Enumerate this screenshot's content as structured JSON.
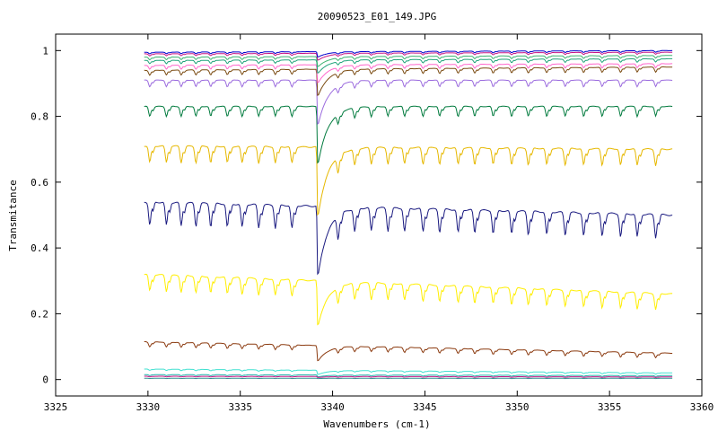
{
  "chart_data": {
    "type": "line",
    "title": "20090523_E01_149.JPG",
    "xlabel": "Wavenumbers (cm-1)",
    "ylabel": "Transmitance",
    "xlim": [
      3325,
      3360
    ],
    "ylim": [
      -0.05,
      1.05
    ],
    "x_ticks": [
      3325,
      3330,
      3335,
      3340,
      3345,
      3350,
      3355,
      3360
    ],
    "y_ticks": [
      0,
      0.2,
      0.4,
      0.6,
      0.8,
      1
    ],
    "y_tick_labels": [
      "0",
      "0.2",
      "0.4",
      "0.6",
      "0.8",
      "1"
    ],
    "grid": false,
    "legend": "none",
    "x_range_data": [
      3329.8,
      3358.4
    ],
    "main_dip_x": 3339.2,
    "dip_positions": [
      3330.1,
      3331.0,
      3331.8,
      3332.6,
      3333.4,
      3334.3,
      3335.1,
      3336.0,
      3336.9,
      3337.8,
      3340.3,
      3341.2,
      3342.1,
      3343.0,
      3343.9,
      3344.9,
      3345.8,
      3346.8,
      3347.7,
      3348.7,
      3349.7,
      3350.6,
      3351.6,
      3352.6,
      3353.6,
      3354.6,
      3355.6,
      3356.5,
      3357.5
    ],
    "series": [
      {
        "color": "#1a1a80",
        "start": 0.54,
        "end": 0.5,
        "dip_depth": 0.07,
        "main_dip": 0.31
      },
      {
        "color": "#e6b800",
        "start": 0.71,
        "end": 0.7,
        "dip_depth": 0.05,
        "main_dip": 0.49
      },
      {
        "color": "#ffee00",
        "start": 0.32,
        "end": 0.26,
        "dip_depth": 0.05,
        "main_dip": 0.16
      },
      {
        "color": "#007a3d",
        "start": 0.83,
        "end": 0.83,
        "dip_depth": 0.03,
        "main_dip": 0.65
      },
      {
        "color": "#9b6bde",
        "start": 0.91,
        "end": 0.91,
        "dip_depth": 0.02,
        "main_dip": 0.77
      },
      {
        "color": "#8b3a0f",
        "start": 0.115,
        "end": 0.08,
        "dip_depth": 0.015,
        "main_dip": 0.055
      },
      {
        "color": "#7a4a10",
        "start": 0.94,
        "end": 0.95,
        "dip_depth": 0.015,
        "main_dip": 0.86
      },
      {
        "color": "#ff66cc",
        "start": 0.955,
        "end": 0.96,
        "dip_depth": 0.012,
        "main_dip": 0.9
      },
      {
        "color": "#40e0d0",
        "start": 0.032,
        "end": 0.02,
        "dip_depth": 0.004,
        "main_dip": 0.015
      },
      {
        "color": "#1fa37a",
        "start": 0.97,
        "end": 0.975,
        "dip_depth": 0.01,
        "main_dip": 0.93
      },
      {
        "color": "#3cb371",
        "start": 0.98,
        "end": 0.985,
        "dip_depth": 0.008,
        "main_dip": 0.95
      },
      {
        "color": "#c71585",
        "start": 0.99,
        "end": 0.995,
        "dip_depth": 0.006,
        "main_dip": 0.97
      },
      {
        "color": "#0000cd",
        "start": 0.995,
        "end": 1.0,
        "dip_depth": 0.005,
        "main_dip": 0.98
      },
      {
        "color": "#20b2aa",
        "start": 0.015,
        "end": 0.012,
        "dip_depth": 0.003,
        "main_dip": 0.008
      },
      {
        "color": "#c71585",
        "start": 0.01,
        "end": 0.008,
        "dip_depth": 0.002,
        "main_dip": 0.006
      },
      {
        "color": "#2f8f8f",
        "start": 0.004,
        "end": 0.004,
        "dip_depth": 0.001,
        "main_dip": 0.003
      }
    ]
  }
}
